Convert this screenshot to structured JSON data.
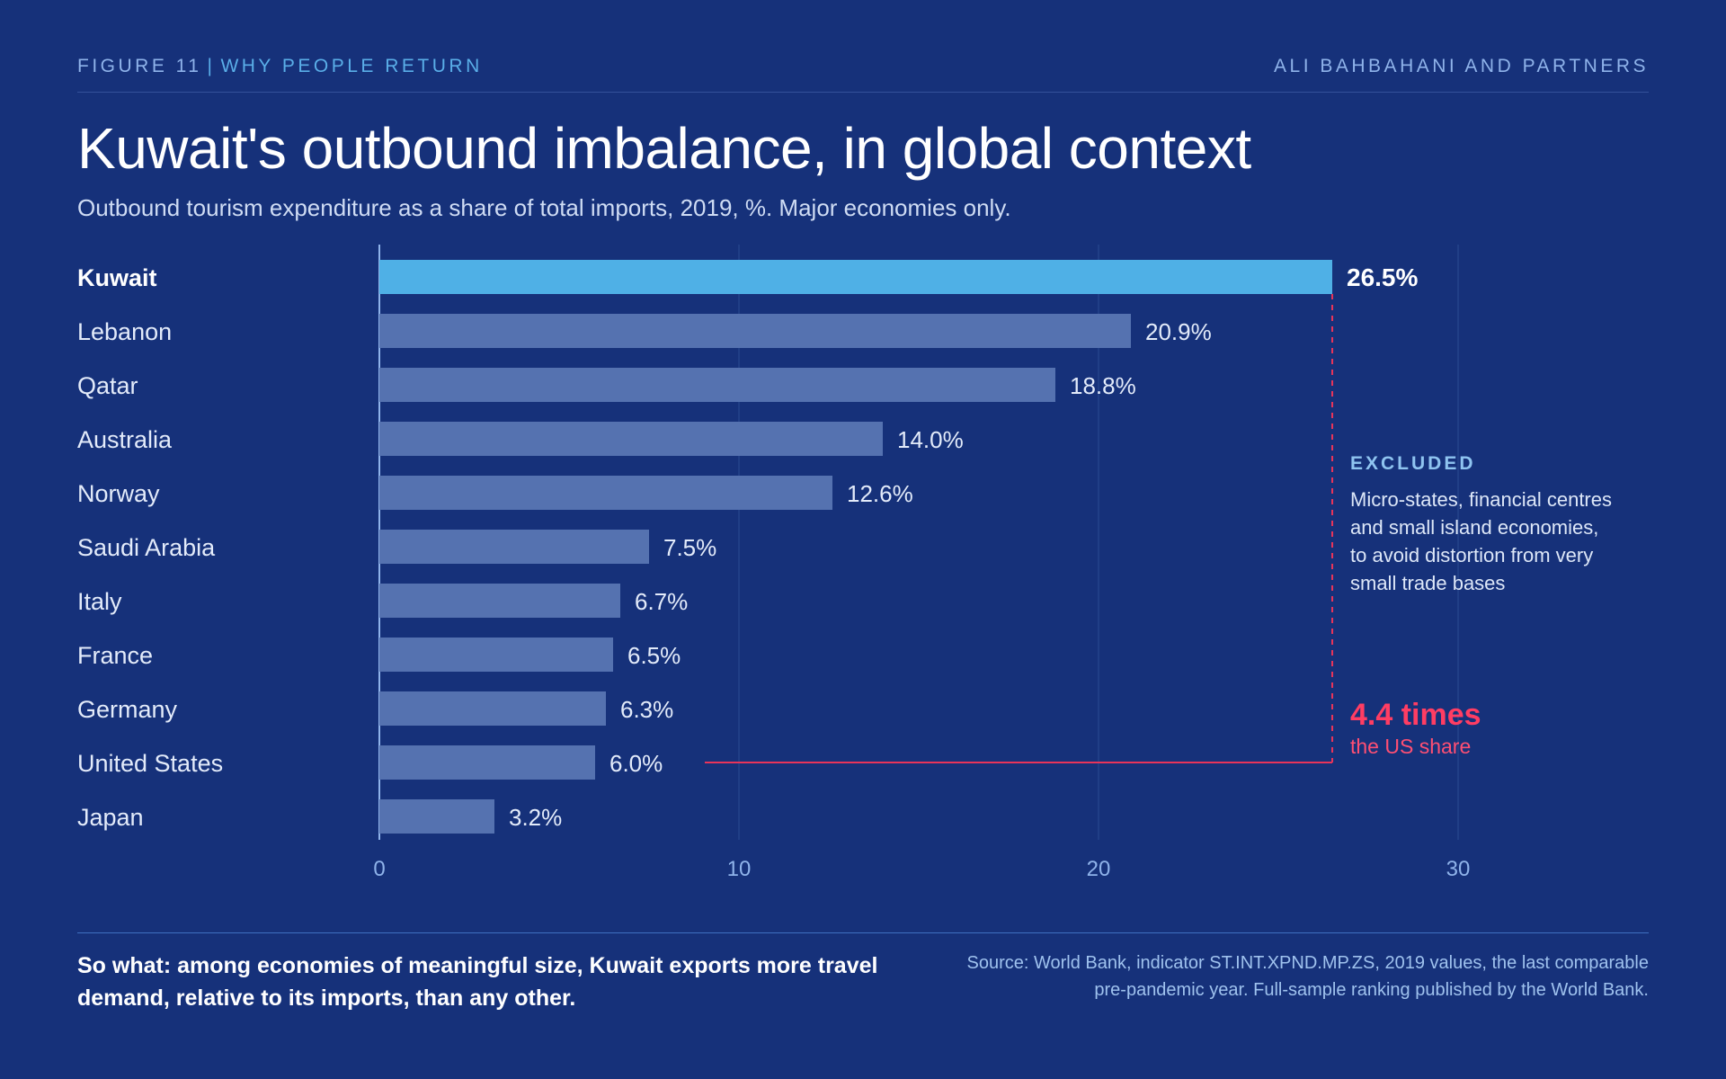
{
  "header": {
    "figure_label": "FIGURE 11",
    "separator": "|",
    "section": "WHY PEOPLE RETURN",
    "brand": "ALI BAHBAHANI AND PARTNERS"
  },
  "chart_data": {
    "type": "bar",
    "orientation": "horizontal",
    "title": "Kuwait's outbound imbalance, in global context",
    "subtitle": "Outbound tourism expenditure as a share of total imports, 2019, %. Major economies only.",
    "categories": [
      "Kuwait",
      "Lebanon",
      "Qatar",
      "Australia",
      "Norway",
      "Saudi Arabia",
      "Italy",
      "France",
      "Germany",
      "United States",
      "Japan"
    ],
    "values": [
      26.5,
      20.9,
      18.8,
      14.0,
      12.6,
      7.5,
      6.7,
      6.5,
      6.3,
      6.0,
      3.2
    ],
    "value_labels": [
      "26.5%",
      "20.9%",
      "18.8%",
      "14.0%",
      "12.6%",
      "7.5%",
      "6.7%",
      "6.5%",
      "6.3%",
      "6.0%",
      "3.2%"
    ],
    "highlight": "Kuwait",
    "xlim": [
      0,
      30
    ],
    "xticks": [
      0,
      10,
      20,
      30
    ],
    "xlabel": "",
    "ylabel": "",
    "grid": true,
    "legend": "none",
    "colors": {
      "highlight_bar": "#4fb0e6",
      "bar": "#5572b0",
      "comparison_line": "#e8345a",
      "grid": "#2a4a92",
      "axis": "#8fb3ea"
    },
    "annotations": {
      "excluded_title": "EXCLUDED",
      "excluded_body": "Micro-states, financial centres and small island economies, to avoid distortion from very small trade bases",
      "comparison_value": "4.4 times",
      "comparison_caption": "the US share",
      "comparison_from": "United States",
      "comparison_to": "Kuwait"
    }
  },
  "footer": {
    "so_what": "So what: among economies of meaningful size, Kuwait exports more travel demand, relative to its imports, than any other.",
    "source": "Source: World Bank, indicator ST.INT.XPND.MP.ZS, 2019 values, the last comparable pre-pandemic year. Full-sample ranking published by the World Bank."
  }
}
